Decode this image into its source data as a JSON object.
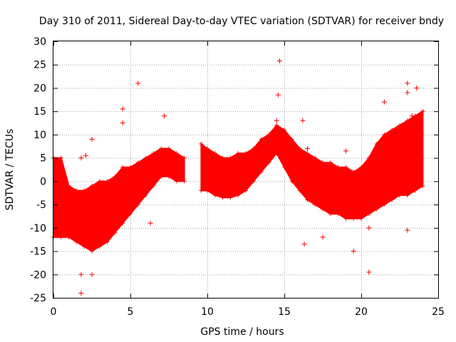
{
  "chart_data": {
    "type": "scatter",
    "title": "Day 310 of 2011, Sidereal Day-to-day VTEC variation (SDTVAR) for receiver bndy",
    "xlabel": "GPS time / hours",
    "ylabel": "SDTVAR / TECUs",
    "xlim": [
      0,
      25
    ],
    "ylim": [
      -25,
      30
    ],
    "xticks": [
      "0",
      "5",
      "10",
      "15",
      "20",
      "25"
    ],
    "yticks": [
      "-25",
      "-20",
      "-15",
      "-10",
      "-5",
      "0",
      "5",
      "10",
      "15",
      "20",
      "25",
      "30"
    ],
    "grid": true,
    "marker": "+",
    "color": "#ff0000",
    "series": [
      {
        "name": "SDTVAR",
        "envelope": [
          {
            "x": 0.0,
            "low": -12,
            "high": 5
          },
          {
            "x": 0.5,
            "low": -12,
            "high": 5
          },
          {
            "x": 1.0,
            "low": -12,
            "high": -1
          },
          {
            "x": 1.5,
            "low": -13,
            "high": -2
          },
          {
            "x": 2.0,
            "low": -14,
            "high": -2
          },
          {
            "x": 2.5,
            "low": -15,
            "high": -1
          },
          {
            "x": 3.0,
            "low": -14,
            "high": 0
          },
          {
            "x": 3.5,
            "low": -13,
            "high": 0
          },
          {
            "x": 4.0,
            "low": -11,
            "high": 1
          },
          {
            "x": 4.5,
            "low": -9,
            "high": 3
          },
          {
            "x": 5.0,
            "low": -7,
            "high": 3
          },
          {
            "x": 5.5,
            "low": -5,
            "high": 4
          },
          {
            "x": 6.0,
            "low": -3,
            "high": 5
          },
          {
            "x": 6.5,
            "low": -1,
            "high": 6
          },
          {
            "x": 7.0,
            "low": 1,
            "high": 7
          },
          {
            "x": 7.5,
            "low": 1,
            "high": 7
          },
          {
            "x": 8.0,
            "low": 0,
            "high": 6
          },
          {
            "x": 8.5,
            "low": 0,
            "high": 5
          },
          {
            "x": 9.6,
            "low": -2,
            "high": 8
          },
          {
            "x": 10.0,
            "low": -2,
            "high": 7
          },
          {
            "x": 10.5,
            "low": -3,
            "high": 6
          },
          {
            "x": 11.0,
            "low": -3.5,
            "high": 5
          },
          {
            "x": 11.5,
            "low": -3.5,
            "high": 5
          },
          {
            "x": 12.0,
            "low": -3,
            "high": 6
          },
          {
            "x": 12.5,
            "low": -2,
            "high": 6
          },
          {
            "x": 13.0,
            "low": 0,
            "high": 7
          },
          {
            "x": 13.5,
            "low": 2,
            "high": 9
          },
          {
            "x": 14.0,
            "low": 4,
            "high": 10
          },
          {
            "x": 14.5,
            "low": 6,
            "high": 12
          },
          {
            "x": 15.0,
            "low": 3,
            "high": 11
          },
          {
            "x": 15.5,
            "low": 0,
            "high": 9
          },
          {
            "x": 16.0,
            "low": -2,
            "high": 7
          },
          {
            "x": 16.5,
            "low": -4,
            "high": 6
          },
          {
            "x": 17.0,
            "low": -5,
            "high": 5
          },
          {
            "x": 17.5,
            "low": -6,
            "high": 4
          },
          {
            "x": 18.0,
            "low": -7,
            "high": 4
          },
          {
            "x": 18.5,
            "low": -7,
            "high": 3
          },
          {
            "x": 19.0,
            "low": -8,
            "high": 3
          },
          {
            "x": 19.5,
            "low": -8,
            "high": 2
          },
          {
            "x": 20.0,
            "low": -8,
            "high": 3
          },
          {
            "x": 20.5,
            "low": -7,
            "high": 5
          },
          {
            "x": 21.0,
            "low": -6,
            "high": 8
          },
          {
            "x": 21.5,
            "low": -5,
            "high": 10
          },
          {
            "x": 22.0,
            "low": -4,
            "high": 11
          },
          {
            "x": 22.5,
            "low": -3,
            "high": 12
          },
          {
            "x": 23.0,
            "low": -3,
            "high": 13
          },
          {
            "x": 23.5,
            "low": -2,
            "high": 14
          },
          {
            "x": 24.0,
            "low": -1,
            "high": 15
          }
        ],
        "outliers": [
          {
            "x": 1.8,
            "y": -24
          },
          {
            "x": 1.8,
            "y": -20
          },
          {
            "x": 2.5,
            "y": -20
          },
          {
            "x": 1.8,
            "y": 5
          },
          {
            "x": 2.1,
            "y": 5.5
          },
          {
            "x": 2.5,
            "y": 9
          },
          {
            "x": 4.5,
            "y": 15.5
          },
          {
            "x": 4.5,
            "y": 12.5
          },
          {
            "x": 5.5,
            "y": 21
          },
          {
            "x": 6.3,
            "y": -9
          },
          {
            "x": 7.2,
            "y": 14
          },
          {
            "x": 14.7,
            "y": 25.8
          },
          {
            "x": 14.6,
            "y": 18.5
          },
          {
            "x": 14.5,
            "y": 13
          },
          {
            "x": 16.2,
            "y": 13
          },
          {
            "x": 16.5,
            "y": 7
          },
          {
            "x": 16.3,
            "y": -13.5
          },
          {
            "x": 17.5,
            "y": -12
          },
          {
            "x": 19.0,
            "y": 6.5
          },
          {
            "x": 19.5,
            "y": -15
          },
          {
            "x": 20.5,
            "y": -19.5
          },
          {
            "x": 20.5,
            "y": -10
          },
          {
            "x": 21.5,
            "y": 17
          },
          {
            "x": 23.0,
            "y": 21
          },
          {
            "x": 23.0,
            "y": 19
          },
          {
            "x": 23.0,
            "y": -10.5
          },
          {
            "x": 23.6,
            "y": 20
          },
          {
            "x": 23.3,
            "y": 14
          }
        ]
      }
    ]
  }
}
